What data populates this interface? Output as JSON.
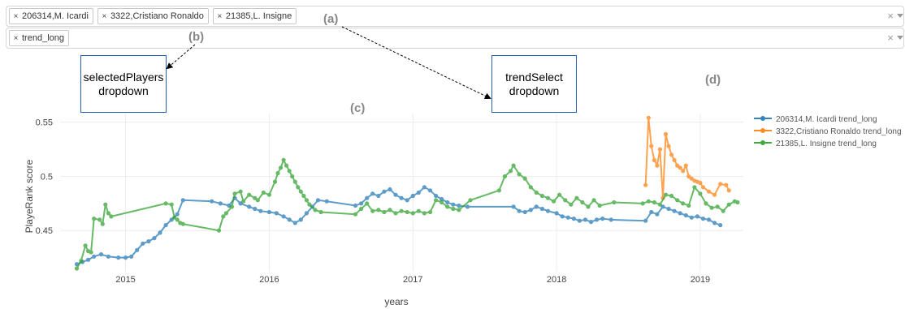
{
  "players_select": {
    "chips": [
      "206314,M. Icardi",
      "3322,Cristiano Ronaldo",
      "21385,L. Insigne"
    ],
    "clear_icon": "×"
  },
  "trend_select": {
    "chips": [
      "trend_long"
    ],
    "clear_icon": "×"
  },
  "chip_remove_icon": "×",
  "annotations": {
    "a": "(a)",
    "b": "(b)",
    "c": "(c)",
    "d": "(d)",
    "box1_line1": "selectedPlayers",
    "box1_line2": "dropdown",
    "box2_line1": "trendSelect",
    "box2_line2": "dropdown"
  },
  "chart_data": {
    "type": "line",
    "xlabel": "years",
    "ylabel": "PlayeRank score",
    "x_ticks": [
      "2015",
      "2016",
      "2017",
      "2018",
      "2019"
    ],
    "y_ticks": [
      "0.45",
      "0.5",
      "0.55"
    ],
    "ylim": [
      0.412,
      0.558
    ],
    "xlim": [
      2014.55,
      2019.3
    ],
    "grid": true,
    "legend_position": "right",
    "series": [
      {
        "name": "206314,M. Icardi trend_long",
        "color": "#1f77b4",
        "points": [
          [
            2014.66,
            0.419
          ],
          [
            2014.7,
            0.421
          ],
          [
            2014.74,
            0.423
          ],
          [
            2014.78,
            0.426
          ],
          [
            2014.83,
            0.428
          ],
          [
            2014.88,
            0.426
          ],
          [
            2014.95,
            0.425
          ],
          [
            2015.0,
            0.425
          ],
          [
            2015.04,
            0.426
          ],
          [
            2015.08,
            0.432
          ],
          [
            2015.12,
            0.438
          ],
          [
            2015.16,
            0.44
          ],
          [
            2015.2,
            0.443
          ],
          [
            2015.24,
            0.448
          ],
          [
            2015.28,
            0.455
          ],
          [
            2015.32,
            0.46
          ],
          [
            2015.36,
            0.465
          ],
          [
            2015.4,
            0.478
          ],
          [
            2015.6,
            0.477
          ],
          [
            2015.66,
            0.475
          ],
          [
            2015.72,
            0.473
          ],
          [
            2015.76,
            0.48
          ],
          [
            2015.8,
            0.475
          ],
          [
            2015.86,
            0.472
          ],
          [
            2015.9,
            0.47
          ],
          [
            2015.94,
            0.468
          ],
          [
            2016.0,
            0.467
          ],
          [
            2016.05,
            0.466
          ],
          [
            2016.1,
            0.463
          ],
          [
            2016.14,
            0.46
          ],
          [
            2016.18,
            0.457
          ],
          [
            2016.22,
            0.46
          ],
          [
            2016.26,
            0.466
          ],
          [
            2016.3,
            0.472
          ],
          [
            2016.34,
            0.478
          ],
          [
            2016.4,
            0.477
          ],
          [
            2016.6,
            0.473
          ],
          [
            2016.64,
            0.475
          ],
          [
            2016.68,
            0.48
          ],
          [
            2016.72,
            0.484
          ],
          [
            2016.76,
            0.482
          ],
          [
            2016.8,
            0.486
          ],
          [
            2016.84,
            0.488
          ],
          [
            2016.88,
            0.483
          ],
          [
            2016.92,
            0.48
          ],
          [
            2016.96,
            0.478
          ],
          [
            2017.0,
            0.482
          ],
          [
            2017.04,
            0.485
          ],
          [
            2017.08,
            0.49
          ],
          [
            2017.12,
            0.487
          ],
          [
            2017.16,
            0.482
          ],
          [
            2017.2,
            0.479
          ],
          [
            2017.24,
            0.476
          ],
          [
            2017.28,
            0.474
          ],
          [
            2017.32,
            0.473
          ],
          [
            2017.38,
            0.472
          ],
          [
            2017.7,
            0.472
          ],
          [
            2017.74,
            0.468
          ],
          [
            2017.78,
            0.467
          ],
          [
            2017.82,
            0.469
          ],
          [
            2017.86,
            0.472
          ],
          [
            2017.9,
            0.47
          ],
          [
            2017.94,
            0.468
          ],
          [
            2018.0,
            0.466
          ],
          [
            2018.04,
            0.463
          ],
          [
            2018.08,
            0.462
          ],
          [
            2018.12,
            0.461
          ],
          [
            2018.16,
            0.459
          ],
          [
            2018.2,
            0.46
          ],
          [
            2018.24,
            0.458
          ],
          [
            2018.28,
            0.46
          ],
          [
            2018.32,
            0.461
          ],
          [
            2018.38,
            0.46
          ],
          [
            2018.62,
            0.459
          ],
          [
            2018.66,
            0.467
          ],
          [
            2018.7,
            0.465
          ],
          [
            2018.74,
            0.472
          ],
          [
            2018.78,
            0.47
          ],
          [
            2018.82,
            0.468
          ],
          [
            2018.86,
            0.466
          ],
          [
            2018.9,
            0.464
          ],
          [
            2018.94,
            0.462
          ],
          [
            2018.98,
            0.463
          ],
          [
            2019.02,
            0.461
          ],
          [
            2019.06,
            0.46
          ],
          [
            2019.1,
            0.457
          ],
          [
            2019.14,
            0.455
          ]
        ]
      },
      {
        "name": "3322,Cristiano Ronaldo trend_long",
        "color": "#ff7f0e",
        "points": [
          [
            2018.62,
            0.492
          ],
          [
            2018.64,
            0.554
          ],
          [
            2018.66,
            0.528
          ],
          [
            2018.68,
            0.515
          ],
          [
            2018.7,
            0.51
          ],
          [
            2018.72,
            0.525
          ],
          [
            2018.74,
            0.48
          ],
          [
            2018.76,
            0.539
          ],
          [
            2018.78,
            0.528
          ],
          [
            2018.8,
            0.52
          ],
          [
            2018.82,
            0.515
          ],
          [
            2018.84,
            0.51
          ],
          [
            2018.86,
            0.508
          ],
          [
            2018.88,
            0.505
          ],
          [
            2018.9,
            0.51
          ],
          [
            2018.92,
            0.5
          ],
          [
            2018.94,
            0.498
          ],
          [
            2018.96,
            0.496
          ],
          [
            2018.98,
            0.495
          ],
          [
            2019.0,
            0.494
          ],
          [
            2019.02,
            0.49
          ],
          [
            2019.06,
            0.486
          ],
          [
            2019.1,
            0.483
          ],
          [
            2019.14,
            0.493
          ],
          [
            2019.18,
            0.492
          ],
          [
            2019.2,
            0.487
          ]
        ]
      },
      {
        "name": "21385,L. Insigne trend_long",
        "color": "#2ca02c",
        "points": [
          [
            2014.66,
            0.415
          ],
          [
            2014.69,
            0.422
          ],
          [
            2014.72,
            0.436
          ],
          [
            2014.74,
            0.431
          ],
          [
            2014.76,
            0.43
          ],
          [
            2014.78,
            0.461
          ],
          [
            2014.82,
            0.46
          ],
          [
            2014.84,
            0.456
          ],
          [
            2014.86,
            0.474
          ],
          [
            2014.88,
            0.466
          ],
          [
            2014.9,
            0.463
          ],
          [
            2015.28,
            0.475
          ],
          [
            2015.32,
            0.474
          ],
          [
            2015.34,
            0.462
          ],
          [
            2015.36,
            0.46
          ],
          [
            2015.38,
            0.457
          ],
          [
            2015.4,
            0.456
          ],
          [
            2015.65,
            0.45
          ],
          [
            2015.68,
            0.463
          ],
          [
            2015.7,
            0.466
          ],
          [
            2015.74,
            0.472
          ],
          [
            2015.76,
            0.484
          ],
          [
            2015.8,
            0.486
          ],
          [
            2015.82,
            0.477
          ],
          [
            2015.86,
            0.483
          ],
          [
            2015.9,
            0.48
          ],
          [
            2015.92,
            0.478
          ],
          [
            2015.96,
            0.485
          ],
          [
            2016.0,
            0.483
          ],
          [
            2016.04,
            0.495
          ],
          [
            2016.06,
            0.503
          ],
          [
            2016.08,
            0.508
          ],
          [
            2016.1,
            0.515
          ],
          [
            2016.12,
            0.51
          ],
          [
            2016.14,
            0.505
          ],
          [
            2016.16,
            0.5
          ],
          [
            2016.18,
            0.495
          ],
          [
            2016.2,
            0.49
          ],
          [
            2016.22,
            0.486
          ],
          [
            2016.24,
            0.482
          ],
          [
            2016.26,
            0.478
          ],
          [
            2016.28,
            0.474
          ],
          [
            2016.32,
            0.469
          ],
          [
            2016.36,
            0.467
          ],
          [
            2016.6,
            0.465
          ],
          [
            2016.64,
            0.47
          ],
          [
            2016.68,
            0.475
          ],
          [
            2016.72,
            0.468
          ],
          [
            2016.76,
            0.469
          ],
          [
            2016.8,
            0.467
          ],
          [
            2016.84,
            0.469
          ],
          [
            2016.88,
            0.466
          ],
          [
            2016.92,
            0.468
          ],
          [
            2016.96,
            0.467
          ],
          [
            2017.0,
            0.466
          ],
          [
            2017.04,
            0.468
          ],
          [
            2017.08,
            0.466
          ],
          [
            2017.12,
            0.467
          ],
          [
            2017.16,
            0.478
          ],
          [
            2017.2,
            0.476
          ],
          [
            2017.24,
            0.472
          ],
          [
            2017.28,
            0.47
          ],
          [
            2017.32,
            0.469
          ],
          [
            2017.4,
            0.478
          ],
          [
            2017.6,
            0.487
          ],
          [
            2017.64,
            0.5
          ],
          [
            2017.68,
            0.505
          ],
          [
            2017.7,
            0.51
          ],
          [
            2017.74,
            0.502
          ],
          [
            2017.78,
            0.498
          ],
          [
            2017.82,
            0.49
          ],
          [
            2017.86,
            0.485
          ],
          [
            2017.9,
            0.482
          ],
          [
            2017.94,
            0.48
          ],
          [
            2017.98,
            0.477
          ],
          [
            2018.02,
            0.483
          ],
          [
            2018.06,
            0.478
          ],
          [
            2018.1,
            0.474
          ],
          [
            2018.14,
            0.48
          ],
          [
            2018.18,
            0.476
          ],
          [
            2018.22,
            0.472
          ],
          [
            2018.26,
            0.478
          ],
          [
            2018.3,
            0.473
          ],
          [
            2018.4,
            0.476
          ],
          [
            2018.6,
            0.475
          ],
          [
            2018.64,
            0.477
          ],
          [
            2018.68,
            0.476
          ],
          [
            2018.72,
            0.474
          ],
          [
            2018.76,
            0.483
          ],
          [
            2018.8,
            0.482
          ],
          [
            2018.84,
            0.478
          ],
          [
            2018.88,
            0.475
          ],
          [
            2018.92,
            0.473
          ],
          [
            2018.96,
            0.49
          ],
          [
            2019.0,
            0.484
          ],
          [
            2019.04,
            0.475
          ],
          [
            2019.08,
            0.471
          ],
          [
            2019.12,
            0.472
          ],
          [
            2019.16,
            0.468
          ],
          [
            2019.2,
            0.474
          ],
          [
            2019.24,
            0.477
          ],
          [
            2019.26,
            0.476
          ]
        ]
      }
    ]
  }
}
